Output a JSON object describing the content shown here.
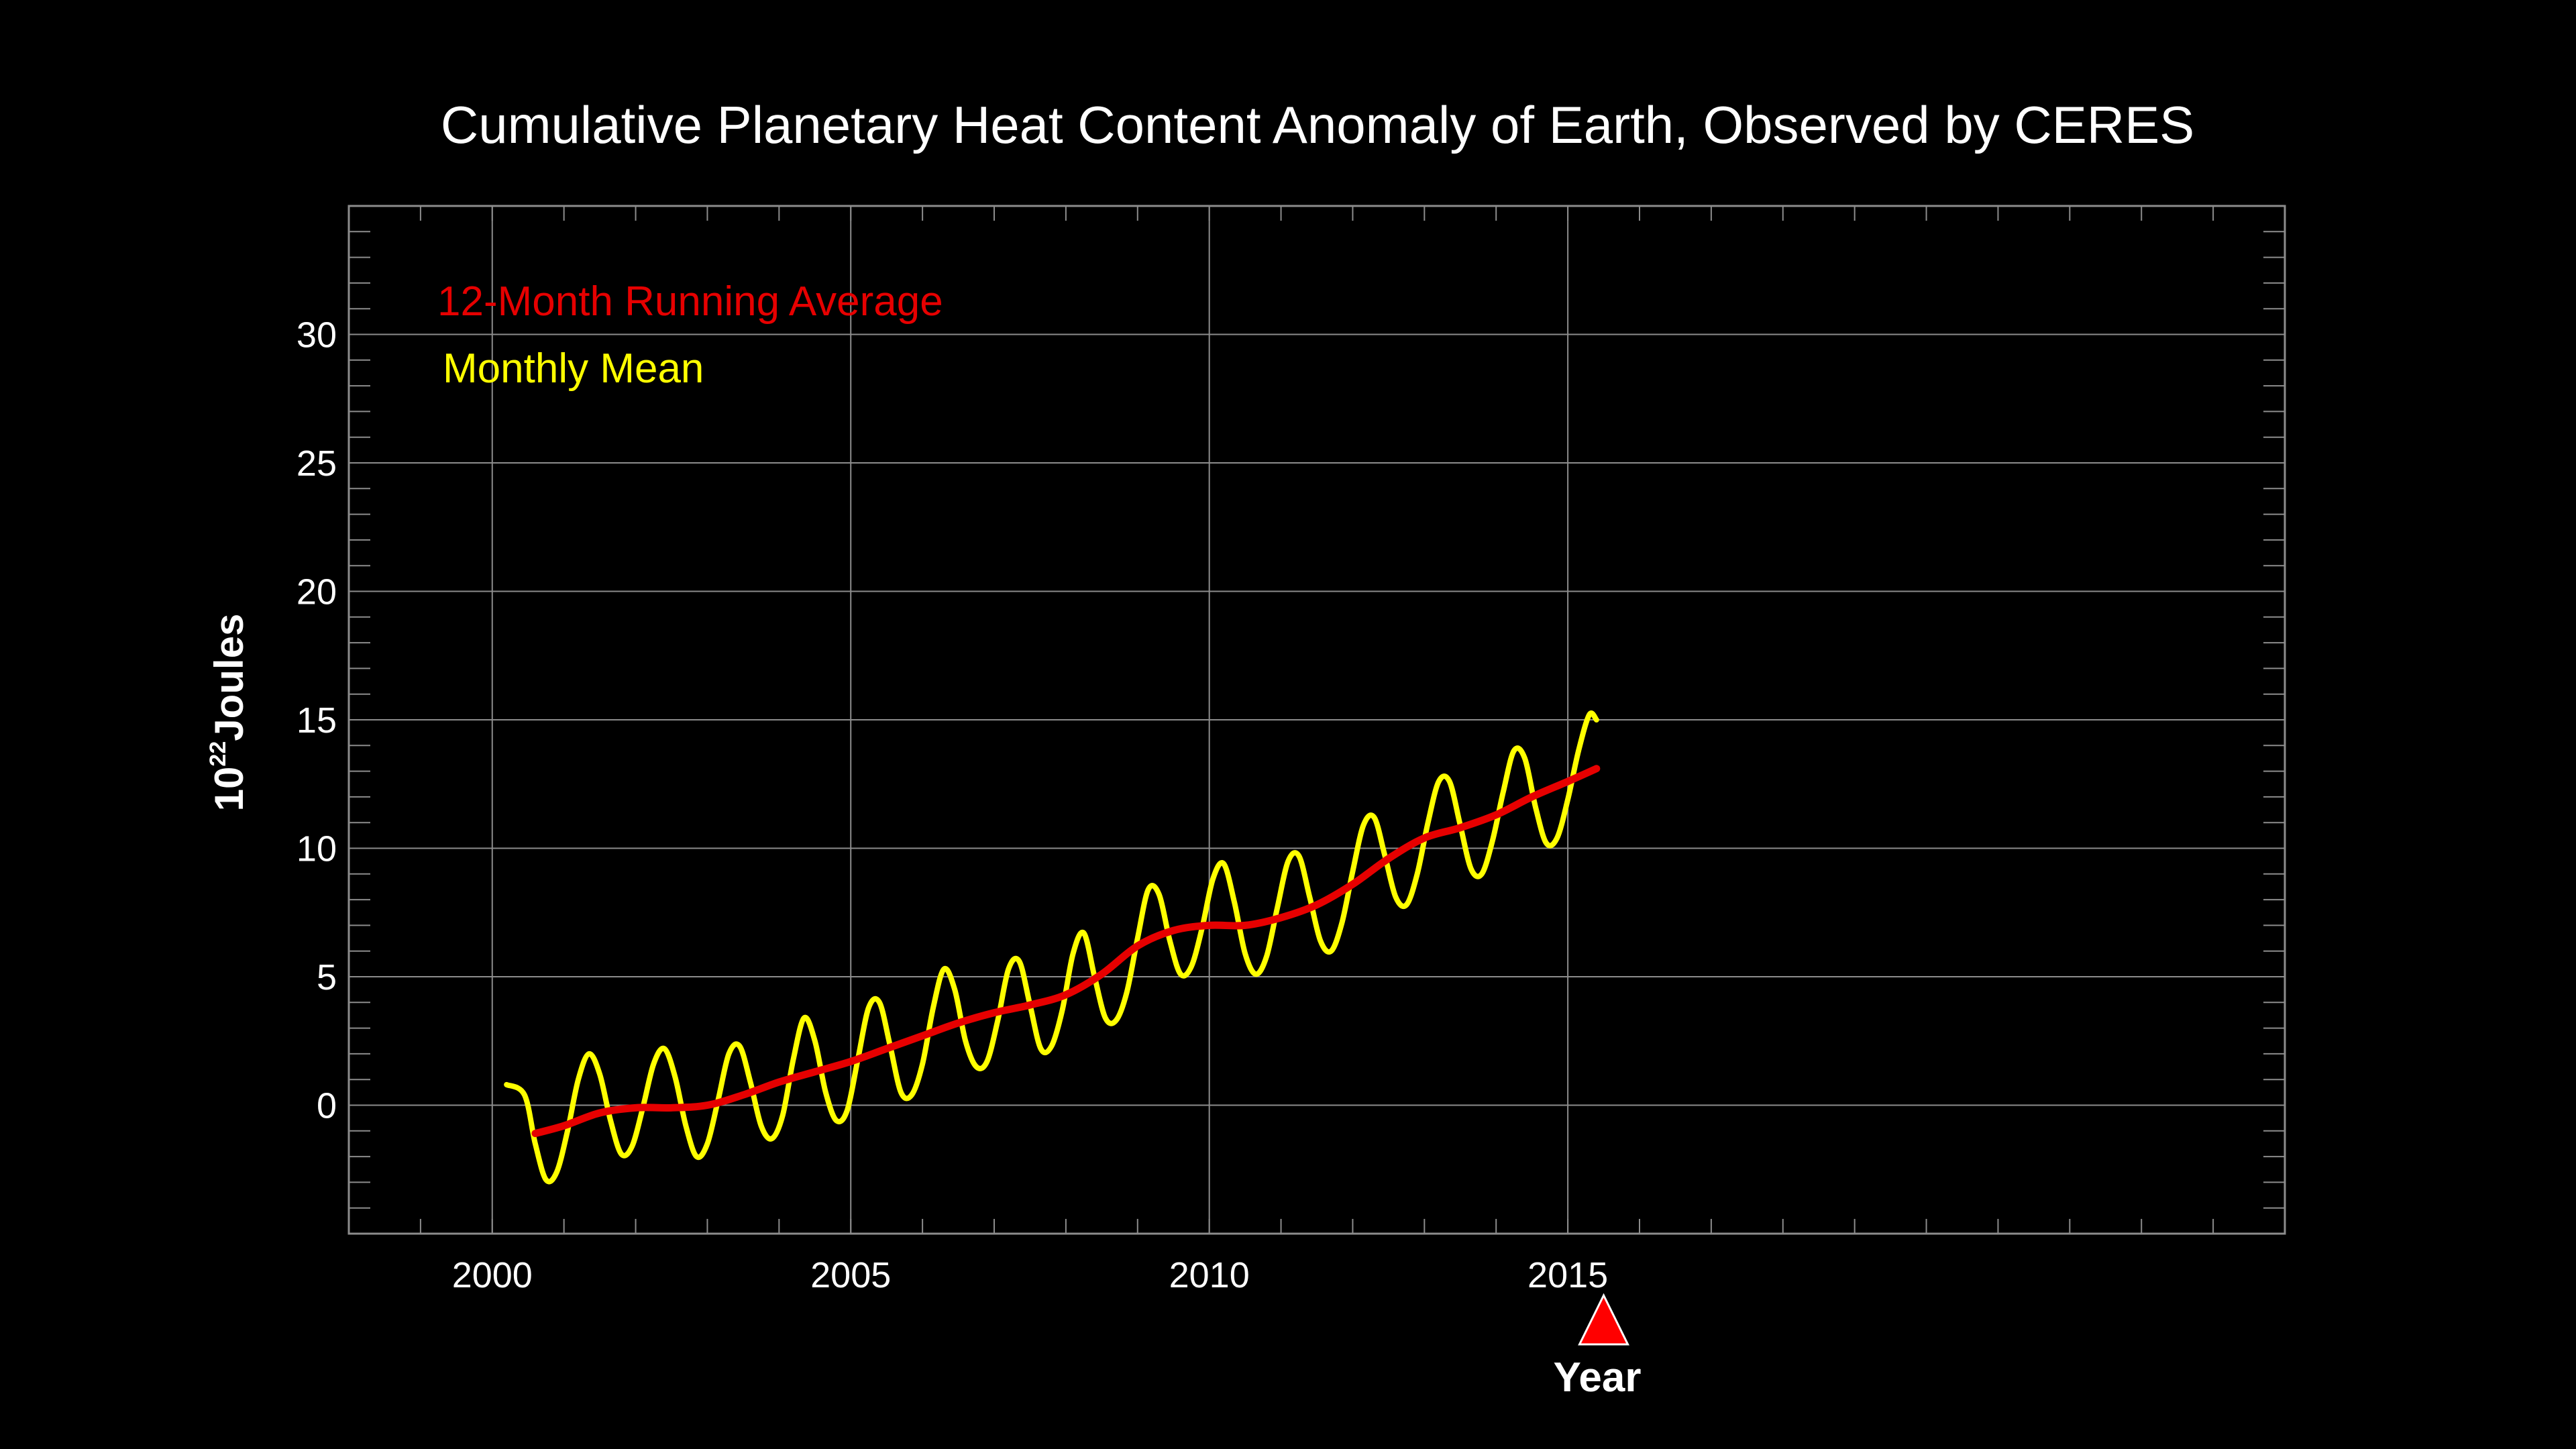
{
  "chart_data": {
    "type": "line",
    "title": "Cumulative Planetary Heat Content Anomaly of Earth, Observed by CERES",
    "xlabel": "Year",
    "ylabel": {
      "base": "10",
      "exponent": "22",
      "unit": "Joules"
    },
    "xlim": [
      1998,
      2025
    ],
    "ylim": [
      -5,
      35
    ],
    "x_ticks": [
      2000,
      2005,
      2010,
      2015
    ],
    "x_minor_step": 1,
    "y_ticks": [
      0,
      5,
      10,
      15,
      20,
      25,
      30
    ],
    "y_minor_step": 1,
    "grid": true,
    "legend_position": "top-left",
    "marker": {
      "x": 2015.5,
      "color": "#ff0000",
      "shape": "triangle"
    },
    "colors": {
      "background": "#000000",
      "text": "#ffffff",
      "grid": "#8c8c8c",
      "running_average": "#e60000",
      "monthly_mean": "#ffff00"
    },
    "series": [
      {
        "name": "Monthly Mean",
        "color": "#ffff00",
        "points": [
          [
            2000.2,
            0.8
          ],
          [
            2000.45,
            0.4
          ],
          [
            2000.6,
            -1.5
          ],
          [
            2000.75,
            -2.9
          ],
          [
            2000.9,
            -2.6
          ],
          [
            2001.05,
            -1.0
          ],
          [
            2001.2,
            1.0
          ],
          [
            2001.35,
            2.0
          ],
          [
            2001.5,
            1.2
          ],
          [
            2001.65,
            -0.6
          ],
          [
            2001.8,
            -1.9
          ],
          [
            2001.95,
            -1.6
          ],
          [
            2002.1,
            -0.1
          ],
          [
            2002.25,
            1.6
          ],
          [
            2002.4,
            2.2
          ],
          [
            2002.55,
            1.1
          ],
          [
            2002.7,
            -0.8
          ],
          [
            2002.85,
            -2.0
          ],
          [
            2003.0,
            -1.5
          ],
          [
            2003.15,
            0.2
          ],
          [
            2003.3,
            2.0
          ],
          [
            2003.45,
            2.3
          ],
          [
            2003.6,
            0.9
          ],
          [
            2003.75,
            -0.8
          ],
          [
            2003.9,
            -1.3
          ],
          [
            2004.05,
            -0.4
          ],
          [
            2004.2,
            1.8
          ],
          [
            2004.35,
            3.4
          ],
          [
            2004.5,
            2.5
          ],
          [
            2004.65,
            0.5
          ],
          [
            2004.8,
            -0.6
          ],
          [
            2004.95,
            -0.2
          ],
          [
            2005.1,
            1.8
          ],
          [
            2005.25,
            3.8
          ],
          [
            2005.4,
            4.0
          ],
          [
            2005.55,
            2.3
          ],
          [
            2005.7,
            0.5
          ],
          [
            2005.85,
            0.4
          ],
          [
            2006.0,
            1.6
          ],
          [
            2006.15,
            3.8
          ],
          [
            2006.3,
            5.3
          ],
          [
            2006.45,
            4.5
          ],
          [
            2006.6,
            2.5
          ],
          [
            2006.75,
            1.5
          ],
          [
            2006.9,
            1.7
          ],
          [
            2007.05,
            3.3
          ],
          [
            2007.2,
            5.3
          ],
          [
            2007.35,
            5.6
          ],
          [
            2007.5,
            3.9
          ],
          [
            2007.65,
            2.2
          ],
          [
            2007.8,
            2.3
          ],
          [
            2007.95,
            3.7
          ],
          [
            2008.1,
            5.9
          ],
          [
            2008.25,
            6.7
          ],
          [
            2008.4,
            5.0
          ],
          [
            2008.55,
            3.4
          ],
          [
            2008.7,
            3.3
          ],
          [
            2008.85,
            4.4
          ],
          [
            2009.0,
            6.5
          ],
          [
            2009.15,
            8.4
          ],
          [
            2009.3,
            8.2
          ],
          [
            2009.45,
            6.4
          ],
          [
            2009.6,
            5.1
          ],
          [
            2009.75,
            5.4
          ],
          [
            2009.9,
            6.9
          ],
          [
            2010.05,
            8.8
          ],
          [
            2010.2,
            9.4
          ],
          [
            2010.35,
            7.9
          ],
          [
            2010.5,
            5.9
          ],
          [
            2010.65,
            5.1
          ],
          [
            2010.8,
            5.8
          ],
          [
            2010.95,
            7.7
          ],
          [
            2011.1,
            9.5
          ],
          [
            2011.25,
            9.7
          ],
          [
            2011.4,
            8.1
          ],
          [
            2011.55,
            6.4
          ],
          [
            2011.7,
            6.0
          ],
          [
            2011.85,
            7.1
          ],
          [
            2012.0,
            9.1
          ],
          [
            2012.15,
            10.9
          ],
          [
            2012.3,
            11.2
          ],
          [
            2012.45,
            9.7
          ],
          [
            2012.6,
            8.1
          ],
          [
            2012.75,
            7.8
          ],
          [
            2012.9,
            9.0
          ],
          [
            2013.05,
            11.0
          ],
          [
            2013.2,
            12.6
          ],
          [
            2013.35,
            12.6
          ],
          [
            2013.5,
            10.9
          ],
          [
            2013.65,
            9.2
          ],
          [
            2013.8,
            9.0
          ],
          [
            2013.95,
            10.3
          ],
          [
            2014.1,
            12.2
          ],
          [
            2014.25,
            13.8
          ],
          [
            2014.4,
            13.5
          ],
          [
            2014.55,
            11.6
          ],
          [
            2014.7,
            10.2
          ],
          [
            2014.85,
            10.4
          ],
          [
            2015.0,
            11.9
          ],
          [
            2015.15,
            13.8
          ],
          [
            2015.3,
            15.2
          ],
          [
            2015.4,
            15.0
          ]
        ]
      },
      {
        "name": "12-Month Running Average",
        "color": "#e60000",
        "points": [
          [
            2000.6,
            -1.1
          ],
          [
            2001.0,
            -0.8
          ],
          [
            2001.5,
            -0.3
          ],
          [
            2002.0,
            -0.1
          ],
          [
            2002.5,
            -0.1
          ],
          [
            2003.0,
            0.0
          ],
          [
            2003.5,
            0.4
          ],
          [
            2004.0,
            0.9
          ],
          [
            2004.5,
            1.3
          ],
          [
            2005.0,
            1.7
          ],
          [
            2005.5,
            2.2
          ],
          [
            2006.0,
            2.7
          ],
          [
            2006.5,
            3.2
          ],
          [
            2007.0,
            3.6
          ],
          [
            2007.5,
            3.9
          ],
          [
            2008.0,
            4.3
          ],
          [
            2008.5,
            5.1
          ],
          [
            2009.0,
            6.2
          ],
          [
            2009.5,
            6.8
          ],
          [
            2010.0,
            7.0
          ],
          [
            2010.5,
            7.0
          ],
          [
            2011.0,
            7.3
          ],
          [
            2011.5,
            7.8
          ],
          [
            2012.0,
            8.6
          ],
          [
            2012.5,
            9.6
          ],
          [
            2013.0,
            10.4
          ],
          [
            2013.5,
            10.8
          ],
          [
            2014.0,
            11.3
          ],
          [
            2014.5,
            12.0
          ],
          [
            2015.0,
            12.6
          ],
          [
            2015.4,
            13.1
          ]
        ]
      }
    ]
  }
}
